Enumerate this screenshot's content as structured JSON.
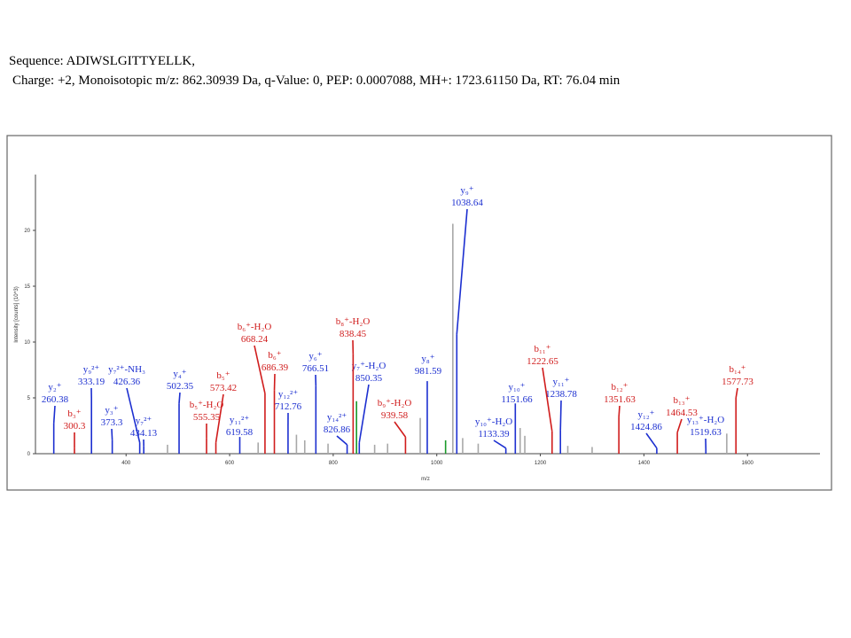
{
  "header": {
    "sequence": "Sequence: ADIWSLGITTYELLK,",
    "details": "Charge: +2, Monoisotopic m/z: 862.30939 Da, q-Value: 0, PEP: 0.0007088, MH+: 1723.61150 Da, RT: 76.04 min"
  },
  "chart_data": {
    "type": "spectrum",
    "x_label": "m/z",
    "y_label": "Intensity [counts] (10^3)",
    "xlim": [
      225,
      1740
    ],
    "xticks": [
      400,
      600,
      800,
      1000,
      1200,
      1400,
      1600
    ],
    "ylim": [
      0,
      25
    ],
    "yticks": [
      0,
      5,
      10,
      15,
      20
    ],
    "series": [
      {
        "color": "#1c2fd0",
        "x": [
          260.38,
          333.19,
          373.3,
          426.36,
          434.13,
          502.35,
          619.58,
          712.76,
          766.51,
          826.86,
          850.35,
          981.59,
          1038.64,
          1133.39,
          1151.66,
          1238.78,
          1424.86,
          1519.63
        ],
        "values": [
          2.7,
          5.0,
          1.2,
          1.0,
          0.7,
          4.5,
          1.5,
          2.5,
          6.1,
          0.8,
          1.0,
          6.5,
          10.7,
          0.5,
          4.5,
          2.1,
          0.5,
          0.4
        ],
        "labels": [
          "y₂⁺",
          "y₉²⁺",
          "y₃⁺",
          "y₇²⁺-NH₃",
          "y₇²⁺",
          "y₄⁺",
          "y₁₁²⁺",
          "y₁₂²⁺",
          "y₆⁺",
          "y₁₄²⁺",
          "y₇⁺-H₂O",
          "y₈⁺",
          "y₉⁺",
          "y₁₀⁺-H₂O",
          "y₁₀⁺",
          "y₁₁⁺",
          "y₁₂⁺",
          "y₁₃⁺-H₂O"
        ]
      },
      {
        "color": "#d01c1c",
        "x": [
          300.3,
          555.35,
          573.42,
          668.24,
          686.39,
          838.45,
          939.58,
          1222.65,
          1351.63,
          1464.53,
          1577.73
        ],
        "values": [
          0.5,
          1.4,
          1.0,
          5.4,
          5.7,
          8.9,
          1.5,
          2.0,
          3.3,
          1.9,
          5.0
        ],
        "labels": [
          "b₃⁺",
          "b₅⁺-H₂O",
          "b₅⁺",
          "b₆⁺-H₂O",
          "b₆⁺",
          "b₈⁺-H₂O",
          "b₉⁺-H₂O",
          "b₁₁⁺",
          "b₁₂⁺",
          "b₁₃⁺",
          "b₁₄⁺"
        ]
      },
      {
        "color": "#a8a8a8",
        "x": [
          1031,
          968,
          1161,
          1170,
          729,
          745,
          880,
          905,
          1050,
          1080,
          1253,
          1300,
          1560,
          480,
          655,
          790
        ],
        "values": [
          20.6,
          3.2,
          2.3,
          1.6,
          1.7,
          1.2,
          0.8,
          0.9,
          1.4,
          0.9,
          0.7,
          0.6,
          1.8,
          0.8,
          1.0,
          0.9
        ]
      },
      {
        "color": "#1a9a2a",
        "x": [
          845,
          1017
        ],
        "values": [
          4.7,
          1.2
        ]
      }
    ]
  }
}
